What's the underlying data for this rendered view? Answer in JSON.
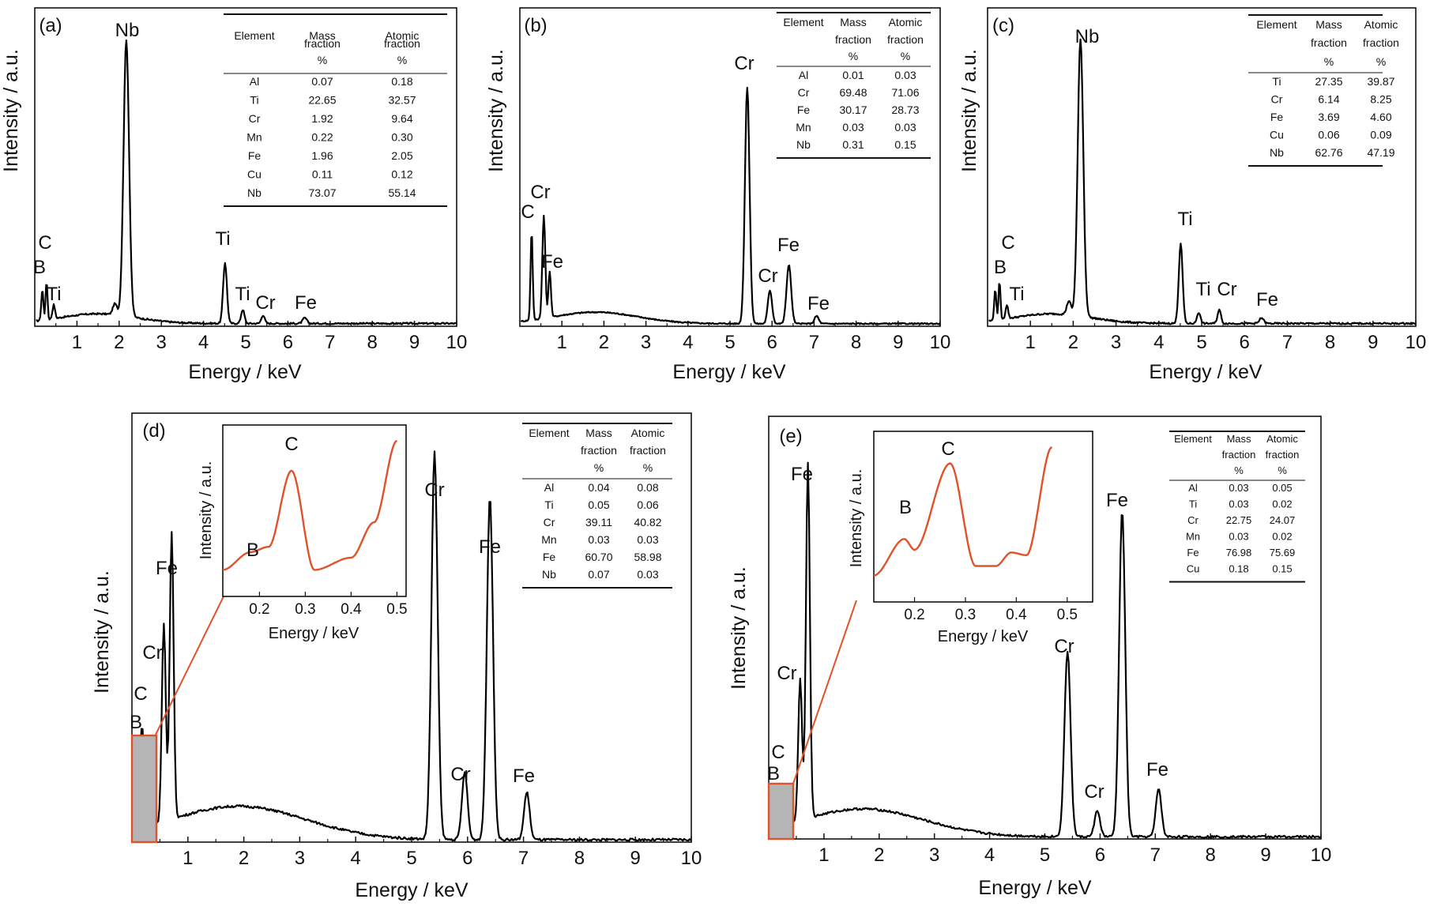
{
  "figure": {
    "panels": [
      {
        "id": "a",
        "label": "(a)",
        "ylabel": "Intensity / a.u.",
        "xlabel": "Energy / keV",
        "xticks": [
          "1",
          "2",
          "3",
          "4",
          "5",
          "6",
          "7",
          "8",
          "9",
          "10"
        ],
        "peaks": [
          {
            "label": "B",
            "x": 0.18
          },
          {
            "label": "C",
            "x": 0.28
          },
          {
            "label": "Ti",
            "x": 0.45
          },
          {
            "label": "Nb",
            "x": 2.17
          },
          {
            "label": "Ti",
            "x": 4.51
          },
          {
            "label": "Ti",
            "x": 4.93
          },
          {
            "label": "Cr",
            "x": 5.41
          },
          {
            "label": "Fe",
            "x": 6.4
          }
        ],
        "table": {
          "headers": [
            "Element",
            "Mass fraction %",
            "Atomic fraction %"
          ],
          "header_lines": [
            [
              "Element"
            ],
            [
              "Mass",
              "fraction",
              "%"
            ],
            [
              "Atomic",
              "fraction",
              "%"
            ]
          ],
          "rows": [
            [
              "Al",
              "0.07",
              "0.18"
            ],
            [
              "Ti",
              "22.65",
              "32.57"
            ],
            [
              "Cr",
              "1.92",
              "9.64"
            ],
            [
              "Mn",
              "0.22",
              "0.30"
            ],
            [
              "Fe",
              "1.96",
              "2.05"
            ],
            [
              "Cu",
              "0.11",
              "0.12"
            ],
            [
              "Nb",
              "73.07",
              "55.14"
            ]
          ]
        }
      },
      {
        "id": "b",
        "label": "(b)",
        "ylabel": "Intensity / a.u.",
        "xlabel": "Energy / keV",
        "xticks": [
          "1",
          "2",
          "3",
          "4",
          "5",
          "6",
          "7",
          "8",
          "9",
          "10"
        ],
        "peaks": [
          {
            "label": "C",
            "x": 0.28
          },
          {
            "label": "Cr",
            "x": 0.57
          },
          {
            "label": "Fe",
            "x": 0.71
          },
          {
            "label": "Cr",
            "x": 5.41
          },
          {
            "label": "Cr",
            "x": 5.95
          },
          {
            "label": "Fe",
            "x": 6.4
          },
          {
            "label": "Fe",
            "x": 7.06
          }
        ],
        "table": {
          "headers": [
            "Element",
            "Mass fraction %",
            "Atomic fraction %"
          ],
          "header_lines": [
            [
              "Element"
            ],
            [
              "Mass",
              "fraction",
              "%"
            ],
            [
              "Atomic",
              "fraction",
              "%"
            ]
          ],
          "rows": [
            [
              "Al",
              "0.01",
              "0.03"
            ],
            [
              "Cr",
              "69.48",
              "71.06"
            ],
            [
              "Fe",
              "30.17",
              "28.73"
            ],
            [
              "Mn",
              "0.03",
              "0.03"
            ],
            [
              "Nb",
              "0.31",
              "0.15"
            ]
          ]
        }
      },
      {
        "id": "c",
        "label": "(c)",
        "ylabel": "Intensity / a.u.",
        "xlabel": "Energy / keV",
        "xticks": [
          "1",
          "2",
          "3",
          "4",
          "5",
          "6",
          "7",
          "8",
          "9",
          "10"
        ],
        "peaks": [
          {
            "label": "B",
            "x": 0.18
          },
          {
            "label": "C",
            "x": 0.28
          },
          {
            "label": "Ti",
            "x": 0.45
          },
          {
            "label": "Nb",
            "x": 2.17
          },
          {
            "label": "Ti",
            "x": 4.51
          },
          {
            "label": "Ti",
            "x": 4.93
          },
          {
            "label": "Cr",
            "x": 5.41
          },
          {
            "label": "Fe",
            "x": 6.4
          }
        ],
        "table": {
          "headers": [
            "Element",
            "Mass fraction %",
            "Atomic fraction %"
          ],
          "header_lines": [
            [
              "Element"
            ],
            [
              "Mass",
              "fraction",
              "%"
            ],
            [
              "Atomic",
              "fraction",
              "%"
            ]
          ],
          "rows": [
            [
              "Ti",
              "27.35",
              "39.87"
            ],
            [
              "Cr",
              "6.14",
              "8.25"
            ],
            [
              "Fe",
              "3.69",
              "4.60"
            ],
            [
              "Cu",
              "0.06",
              "0.09"
            ],
            [
              "Nb",
              "62.76",
              "47.19"
            ]
          ]
        }
      },
      {
        "id": "d",
        "label": "(d)",
        "ylabel": "Intensity / a.u.",
        "xlabel": "Energy / keV",
        "xticks": [
          "1",
          "2",
          "3",
          "4",
          "5",
          "6",
          "7",
          "8",
          "9",
          "10"
        ],
        "peaks": [
          {
            "label": "B",
            "x": 0.18
          },
          {
            "label": "C",
            "x": 0.28
          },
          {
            "label": "Cr",
            "x": 0.57
          },
          {
            "label": "Fe",
            "x": 0.71
          },
          {
            "label": "Cr",
            "x": 5.41
          },
          {
            "label": "Cr",
            "x": 5.95
          },
          {
            "label": "Fe",
            "x": 6.4
          },
          {
            "label": "Fe",
            "x": 7.06
          }
        ],
        "table": {
          "headers": [
            "Element",
            "Mass fraction %",
            "Atomic fraction %"
          ],
          "header_lines": [
            [
              "Element"
            ],
            [
              "Mass",
              "fraction",
              "%"
            ],
            [
              "Atomic",
              "fraction",
              "%"
            ]
          ],
          "rows": [
            [
              "Al",
              "0.04",
              "0.08"
            ],
            [
              "Ti",
              "0.05",
              "0.06"
            ],
            [
              "Cr",
              "39.11",
              "40.82"
            ],
            [
              "Mn",
              "0.03",
              "0.03"
            ],
            [
              "Fe",
              "60.70",
              "58.98"
            ],
            [
              "Nb",
              "0.07",
              "0.03"
            ]
          ]
        },
        "inset": {
          "xlabel": "Energy / keV",
          "ylabel": "Intensity / a.u.",
          "xticks": [
            "0.2",
            "0.3",
            "0.4",
            "0.5"
          ],
          "peaks": [
            {
              "label": "B",
              "x": 0.18
            },
            {
              "label": "C",
              "x": 0.27
            }
          ]
        }
      },
      {
        "id": "e",
        "label": "(e)",
        "ylabel": "Intensity / a.u.",
        "xlabel": "Energy / keV",
        "xticks": [
          "1",
          "2",
          "3",
          "4",
          "5",
          "6",
          "7",
          "8",
          "9",
          "10"
        ],
        "peaks": [
          {
            "label": "B",
            "x": 0.18
          },
          {
            "label": "C",
            "x": 0.28
          },
          {
            "label": "Cr",
            "x": 0.57
          },
          {
            "label": "Fe",
            "x": 0.71
          },
          {
            "label": "Cr",
            "x": 5.41
          },
          {
            "label": "Cr",
            "x": 5.95
          },
          {
            "label": "Fe",
            "x": 6.4
          },
          {
            "label": "Fe",
            "x": 7.06
          }
        ],
        "table": {
          "headers": [
            "Element",
            "Mass fraction %",
            "Atomic fraction %"
          ],
          "header_lines": [
            [
              "Element"
            ],
            [
              "Mass",
              "fraction",
              "%"
            ],
            [
              "Atomic",
              "fraction",
              "%"
            ]
          ],
          "rows": [
            [
              "Al",
              "0.03",
              "0.05"
            ],
            [
              "Ti",
              "0.03",
              "0.02"
            ],
            [
              "Cr",
              "22.75",
              "24.07"
            ],
            [
              "Mn",
              "0.03",
              "0.02"
            ],
            [
              "Fe",
              "76.98",
              "75.69"
            ],
            [
              "Cu",
              "0.18",
              "0.15"
            ]
          ]
        },
        "inset": {
          "xlabel": "Energy / keV",
          "ylabel": "Intensity / a.u.",
          "xticks": [
            "0.2",
            "0.3",
            "0.4",
            "0.5"
          ],
          "peaks": [
            {
              "label": "B",
              "x": 0.18
            },
            {
              "label": "C",
              "x": 0.27
            }
          ]
        }
      }
    ]
  },
  "chart_data": [
    {
      "type": "line",
      "panel": "(a)",
      "title": "",
      "xlabel": "Energy / keV",
      "ylabel": "Intensity / a.u.",
      "xlim": [
        0,
        10
      ],
      "series": [
        {
          "x": [
            0.05,
            0.18,
            0.28,
            0.45,
            1.0,
            1.9,
            2.17,
            2.5,
            3.0,
            4.0,
            4.51,
            4.93,
            5.41,
            6.0,
            6.4,
            7.0,
            8.0,
            9.0,
            10.0
          ],
          "y": [
            0.02,
            0.11,
            0.14,
            0.05,
            0.03,
            0.05,
            1.0,
            0.04,
            0.02,
            0.02,
            0.22,
            0.05,
            0.03,
            0.02,
            0.02,
            0.015,
            0.01,
            0.01,
            0.01
          ]
        }
      ],
      "peak_labels": [
        "B",
        "C",
        "Ti",
        "Nb",
        "Ti",
        "Ti",
        "Cr",
        "Fe"
      ]
    },
    {
      "type": "line",
      "panel": "(b)",
      "title": "",
      "xlabel": "Energy / keV",
      "ylabel": "Intensity / a.u.",
      "xlim": [
        0,
        10
      ],
      "series": [
        {
          "x": [
            0.05,
            0.28,
            0.57,
            0.71,
            1.0,
            1.8,
            3.0,
            4.0,
            5.0,
            5.41,
            5.95,
            6.4,
            7.06,
            8.0,
            9.0,
            10.0
          ],
          "y": [
            0.01,
            0.35,
            0.4,
            0.18,
            0.03,
            0.05,
            0.03,
            0.02,
            0.02,
            0.92,
            0.13,
            0.23,
            0.03,
            0.01,
            0.01,
            0.01
          ]
        }
      ],
      "peak_labels": [
        "C",
        "Cr",
        "Fe",
        "Cr",
        "Cr",
        "Fe",
        "Fe"
      ]
    },
    {
      "type": "line",
      "panel": "(c)",
      "title": "",
      "xlabel": "Energy / keV",
      "ylabel": "Intensity / a.u.",
      "xlim": [
        0,
        10
      ],
      "series": [
        {
          "x": [
            0.05,
            0.18,
            0.28,
            0.45,
            1.0,
            1.9,
            2.17,
            2.5,
            3.0,
            4.0,
            4.51,
            4.93,
            5.41,
            6.0,
            6.4,
            7.0,
            8.0,
            9.0,
            10.0
          ],
          "y": [
            0.02,
            0.11,
            0.14,
            0.05,
            0.03,
            0.05,
            1.0,
            0.04,
            0.02,
            0.02,
            0.29,
            0.04,
            0.05,
            0.02,
            0.02,
            0.015,
            0.01,
            0.01,
            0.01
          ]
        }
      ],
      "peak_labels": [
        "B",
        "C",
        "Ti",
        "Nb",
        "Ti",
        "Ti",
        "Cr",
        "Fe"
      ]
    },
    {
      "type": "line",
      "panel": "(d)",
      "title": "",
      "xlabel": "Energy / keV",
      "ylabel": "Intensity / a.u.",
      "xlim": [
        0,
        10
      ],
      "series": [
        {
          "x": [
            0.05,
            0.18,
            0.28,
            0.57,
            0.71,
            1.0,
            1.8,
            3.0,
            4.0,
            5.0,
            5.41,
            5.95,
            6.4,
            7.06,
            8.0,
            9.0,
            10.0
          ],
          "y": [
            0.02,
            0.3,
            0.1,
            0.52,
            0.76,
            0.03,
            0.09,
            0.05,
            0.03,
            0.02,
            1.0,
            0.18,
            0.88,
            0.13,
            0.01,
            0.01,
            0.005
          ]
        }
      ],
      "peak_labels": [
        "B",
        "C",
        "Cr",
        "Fe",
        "Cr",
        "Cr",
        "Fe",
        "Fe"
      ],
      "inset": {
        "xlabel": "Energy / keV",
        "ylabel": "Intensity / a.u.",
        "xlim": [
          0.12,
          0.52
        ],
        "x": [
          0.12,
          0.18,
          0.22,
          0.27,
          0.32,
          0.4,
          0.45,
          0.5
        ],
        "y": [
          0.05,
          0.18,
          0.22,
          0.78,
          0.05,
          0.14,
          0.4,
          1.0
        ]
      }
    },
    {
      "type": "line",
      "panel": "(e)",
      "title": "",
      "xlabel": "Energy / keV",
      "ylabel": "Intensity / a.u.",
      "xlim": [
        0,
        10
      ],
      "series": [
        {
          "x": [
            0.05,
            0.18,
            0.28,
            0.57,
            0.71,
            1.0,
            1.7,
            3.0,
            4.0,
            5.0,
            5.41,
            5.95,
            6.4,
            7.06,
            8.0,
            9.0,
            10.0
          ],
          "y": [
            0.02,
            0.13,
            0.09,
            0.41,
            0.97,
            0.02,
            0.08,
            0.04,
            0.03,
            0.02,
            0.5,
            0.08,
            0.89,
            0.14,
            0.01,
            0.01,
            0.005
          ]
        }
      ],
      "peak_labels": [
        "B",
        "C",
        "Cr",
        "Fe",
        "Cr",
        "Cr",
        "Fe",
        "Fe"
      ],
      "inset": {
        "xlabel": "Energy / keV",
        "ylabel": "Intensity / a.u.",
        "xlim": [
          0.12,
          0.55
        ],
        "x": [
          0.12,
          0.18,
          0.2,
          0.27,
          0.32,
          0.36,
          0.39,
          0.42,
          0.47
        ],
        "y": [
          0.05,
          0.32,
          0.24,
          0.88,
          0.12,
          0.12,
          0.22,
          0.2,
          1.0
        ]
      }
    }
  ]
}
